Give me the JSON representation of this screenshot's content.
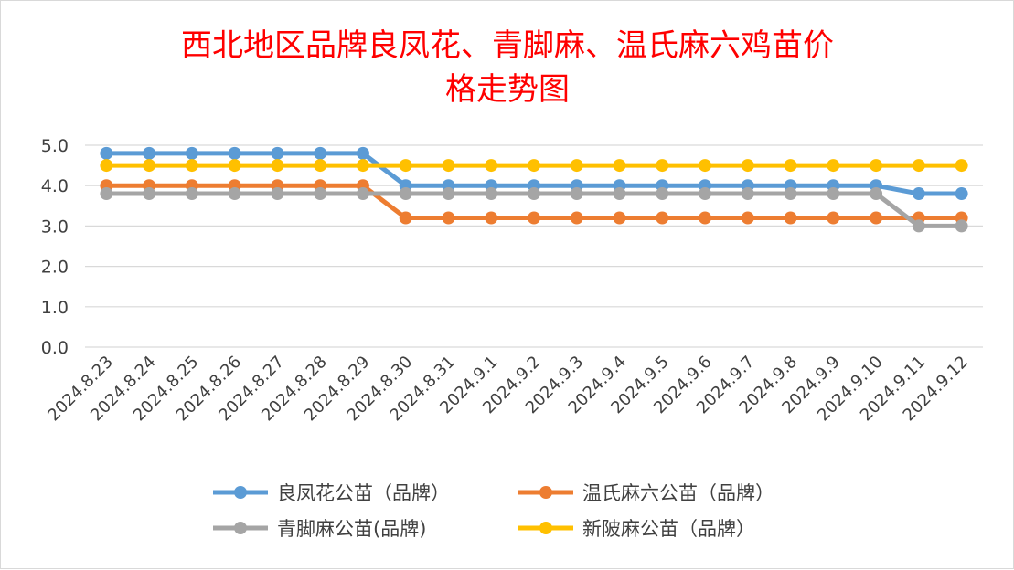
{
  "chart_data": {
    "type": "line",
    "title_lines": [
      "西北地区品牌良凤花、青脚麻、温氏麻六鸡苗价",
      "格走势图"
    ],
    "xlabel": "",
    "ylabel": "",
    "ylim": [
      0,
      5
    ],
    "yticks": [
      "0.0",
      "1.0",
      "2.0",
      "3.0",
      "4.0",
      "5.0"
    ],
    "grid": true,
    "legend_position": "bottom",
    "categories": [
      "2024.8.23",
      "2024.8.24",
      "2024.8.25",
      "2024.8.26",
      "2024.8.27",
      "2024.8.28",
      "2024.8.29",
      "2024.8.30",
      "2024.8.31",
      "2024.9.1",
      "2024.9.2",
      "2024.9.3",
      "2024.9.4",
      "2024.9.5",
      "2024.9.6",
      "2024.9.7",
      "2024.9.8",
      "2024.9.9",
      "2024.9.10",
      "2024.9.11",
      "2024.9.12"
    ],
    "series": [
      {
        "name": "良凤花公苗（品牌）",
        "color": "#5b9bd5",
        "values": [
          4.8,
          4.8,
          4.8,
          4.8,
          4.8,
          4.8,
          4.8,
          4.0,
          4.0,
          4.0,
          4.0,
          4.0,
          4.0,
          4.0,
          4.0,
          4.0,
          4.0,
          4.0,
          4.0,
          3.8,
          3.8
        ]
      },
      {
        "name": "温氏麻六公苗（品牌）",
        "color": "#ed7d31",
        "values": [
          4.0,
          4.0,
          4.0,
          4.0,
          4.0,
          4.0,
          4.0,
          3.2,
          3.2,
          3.2,
          3.2,
          3.2,
          3.2,
          3.2,
          3.2,
          3.2,
          3.2,
          3.2,
          3.2,
          3.2,
          3.2
        ]
      },
      {
        "name": "青脚麻公苗(品牌)",
        "color": "#a5a5a5",
        "values": [
          3.8,
          3.8,
          3.8,
          3.8,
          3.8,
          3.8,
          3.8,
          3.8,
          3.8,
          3.8,
          3.8,
          3.8,
          3.8,
          3.8,
          3.8,
          3.8,
          3.8,
          3.8,
          3.8,
          3.0,
          3.0
        ]
      },
      {
        "name": "新陂麻公苗（品牌）",
        "color": "#ffc000",
        "values": [
          4.5,
          4.5,
          4.5,
          4.5,
          4.5,
          4.5,
          4.5,
          4.5,
          4.5,
          4.5,
          4.5,
          4.5,
          4.5,
          4.5,
          4.5,
          4.5,
          4.5,
          4.5,
          4.5,
          4.5,
          4.5
        ]
      }
    ]
  }
}
